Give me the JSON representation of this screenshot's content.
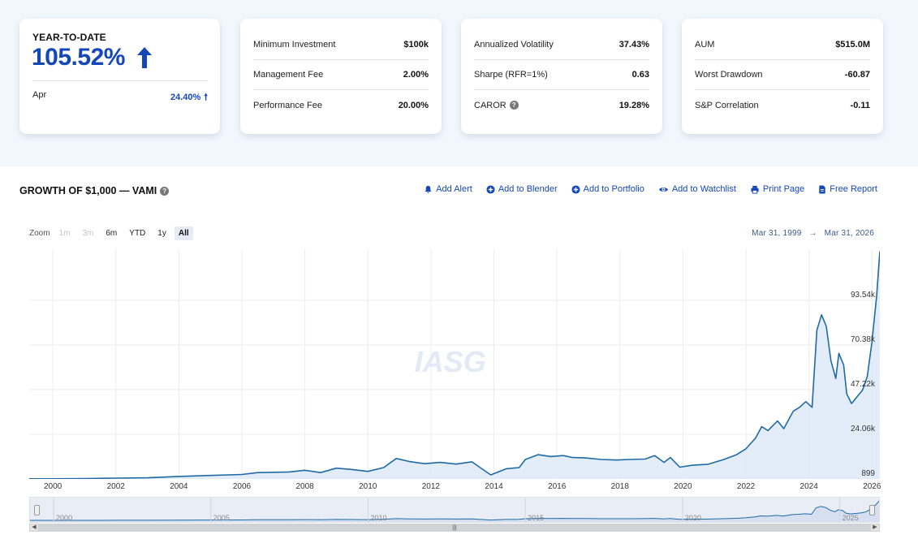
{
  "summary": {
    "ytd_label": "YEAR-TO-DATE",
    "ytd_value": "105.52%",
    "month_label": "Apr",
    "month_value": "24.40%"
  },
  "terms": [
    {
      "label": "Minimum Investment",
      "value": "$100k"
    },
    {
      "label": "Management Fee",
      "value": "2.00%"
    },
    {
      "label": "Performance Fee",
      "value": "20.00%"
    }
  ],
  "risk": [
    {
      "label": "Annualized Volatility",
      "value": "37.43%"
    },
    {
      "label": "Sharpe (RFR=1%)",
      "value": "0.63"
    },
    {
      "label": "CAROR",
      "value": "19.28%"
    }
  ],
  "fund": [
    {
      "label": "AUM",
      "value": "$515.0M"
    },
    {
      "label": "Worst Drawdown",
      "value": "-60.87"
    },
    {
      "label": "S&P Correlation",
      "value": "-0.11"
    }
  ],
  "section": {
    "title": "GROWTH OF $1,000 — VAMI"
  },
  "actions": [
    {
      "label": "Add Alert",
      "icon": "bell-icon"
    },
    {
      "label": "Add to Blender",
      "icon": "plus-circle-icon"
    },
    {
      "label": "Add to Portfolio",
      "icon": "plus-circle-icon"
    },
    {
      "label": "Add to Watchlist",
      "icon": "eye-icon"
    },
    {
      "label": "Print Page",
      "icon": "printer-icon"
    },
    {
      "label": "Free Report",
      "icon": "document-icon"
    }
  ],
  "zoom": {
    "label": "Zoom",
    "buttons": [
      "1m",
      "3m",
      "6m",
      "YTD",
      "1y",
      "All"
    ],
    "disabled": [
      "1m",
      "3m"
    ],
    "active": "All"
  },
  "range": {
    "from": "Mar 31, 1999",
    "arrow": "→",
    "to": "Mar 31, 2026"
  },
  "colors": {
    "accent": "#1447b8",
    "line": "#1f6aa5",
    "area": "#dce8f7",
    "band": "#f1f7fd"
  },
  "chart_data": {
    "type": "area",
    "title": "GROWTH OF $1,000 — VAMI",
    "watermark": "IASG",
    "xlim": [
      1999.25,
      2026.25
    ],
    "ylim": [
      899,
      120000
    ],
    "yticks": [
      899,
      24060,
      47220,
      70380,
      93540
    ],
    "ytick_labels": [
      "899",
      "24.06k",
      "47.22k",
      "70.38k",
      "93.54k"
    ],
    "xticks": [
      2000,
      2002,
      2004,
      2006,
      2008,
      2010,
      2012,
      2014,
      2016,
      2018,
      2020,
      2022,
      2024,
      2026
    ],
    "grid": true,
    "series": [
      {
        "x": [
          1999.25,
          2000.0,
          2001.0,
          2002.0,
          2003.0,
          2004.0,
          2005.0,
          2006.0,
          2006.5,
          2007.5,
          2008.0,
          2008.5,
          2009.0,
          2009.5,
          2010.0,
          2010.5,
          2010.9,
          2011.3,
          2011.8,
          2012.3,
          2012.8,
          2013.3,
          2013.9,
          2014.4,
          2014.8,
          2015.0,
          2015.4,
          2015.8,
          2016.2,
          2016.5,
          2016.9,
          2017.4,
          2017.9,
          2018.3,
          2018.8,
          2019.1,
          2019.4,
          2019.6,
          2019.9,
          2020.3,
          2020.8,
          2021.3,
          2021.7,
          2022.0,
          2022.3,
          2022.5,
          2022.7,
          2023.0,
          2023.2,
          2023.5,
          2023.7,
          2023.9,
          2024.1,
          2024.25,
          2024.4,
          2024.55,
          2024.7,
          2024.85,
          2024.95,
          2025.1,
          2025.2,
          2025.35,
          2025.5,
          2025.7,
          2025.85,
          2026.0,
          2026.15,
          2026.25
        ],
        "y": [
          1000,
          1000,
          1100,
          1300,
          1500,
          2200,
          2700,
          3200,
          4200,
          4500,
          5400,
          4200,
          6500,
          5800,
          4800,
          6800,
          11500,
          10000,
          8800,
          9500,
          8600,
          9800,
          3000,
          6200,
          6800,
          11000,
          13500,
          12500,
          13000,
          12000,
          11800,
          11000,
          10700,
          11000,
          11200,
          13000,
          9500,
          12000,
          7000,
          8000,
          8500,
          11000,
          13500,
          16500,
          22000,
          28000,
          26000,
          31000,
          27000,
          36000,
          38000,
          41000,
          38000,
          78000,
          86000,
          80000,
          62000,
          53000,
          66000,
          60000,
          45000,
          40000,
          43000,
          47000,
          54000,
          72000,
          96000,
          119000
        ]
      }
    ]
  }
}
